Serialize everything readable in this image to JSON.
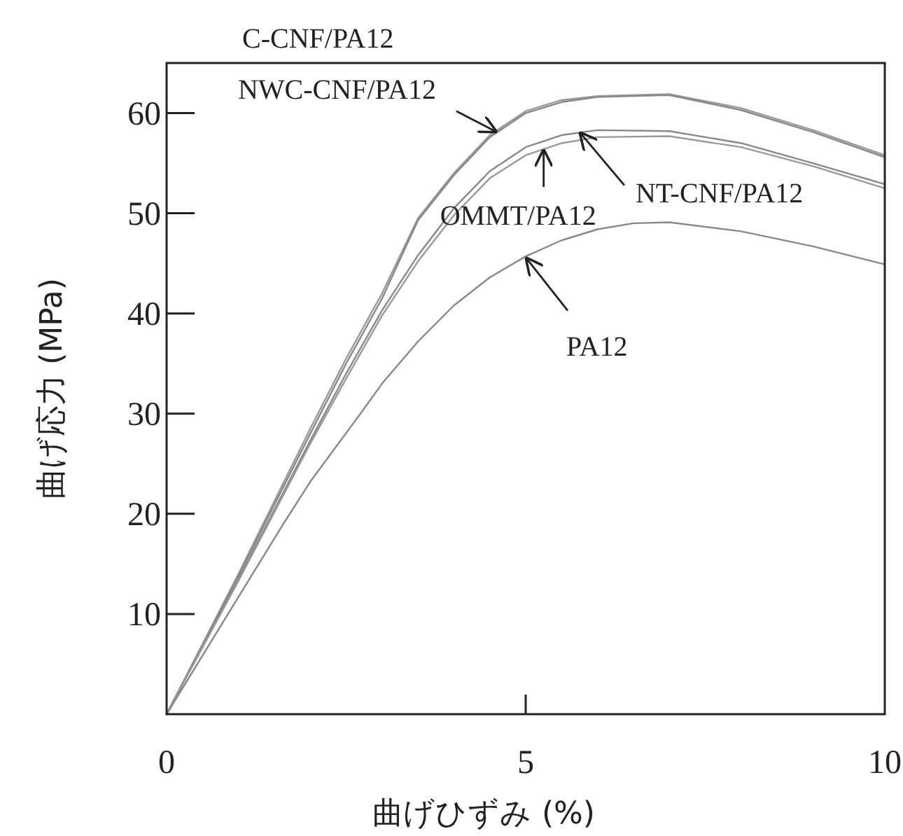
{
  "chart_data": {
    "type": "line",
    "xlabel": "曲げひずみ (%)",
    "ylabel": "曲げ応力 (MPa)",
    "xlim": [
      0,
      10
    ],
    "ylim": [
      0,
      65
    ],
    "xticks": [
      0,
      5,
      10
    ],
    "yticks": [
      10,
      20,
      30,
      40,
      50,
      60
    ],
    "series": [
      {
        "color": "#999999",
        "x": [
          0,
          1,
          2,
          2.5,
          3,
          3.5,
          4,
          4.5,
          5,
          5.5,
          6,
          7,
          8,
          9,
          10
        ],
        "values": [
          0,
          14,
          28.5,
          35.5,
          42,
          49.5,
          54,
          57.8,
          60.2,
          61.3,
          61.7,
          61.9,
          60.5,
          58.3,
          55.8
        ]
      },
      {
        "color": "#888888",
        "x": [
          0,
          1,
          2,
          2.5,
          3,
          3.5,
          4,
          4.5,
          5,
          5.5,
          6,
          7,
          8,
          9,
          10
        ],
        "values": [
          0,
          13.8,
          28,
          35,
          41.5,
          49.3,
          53.8,
          57.6,
          60,
          61.1,
          61.6,
          61.8,
          60.3,
          58.1,
          55.6
        ]
      },
      {
        "color": "#888888",
        "x": [
          0,
          1,
          2,
          2.5,
          3,
          3.5,
          4,
          4.5,
          5,
          5.5,
          6,
          7,
          8,
          9,
          10
        ],
        "values": [
          0,
          13.5,
          27.3,
          34,
          40.3,
          45.8,
          50.5,
          54.2,
          56.6,
          57.8,
          58.3,
          58.2,
          57,
          55,
          52.9
        ]
      },
      {
        "color": "#999999",
        "x": [
          0,
          1,
          2,
          2.5,
          3,
          3.5,
          4,
          4.5,
          5,
          5.5,
          6,
          7,
          8,
          9,
          10
        ],
        "values": [
          0,
          13.3,
          27,
          33.5,
          39.8,
          45.2,
          49.8,
          53.5,
          55.8,
          57,
          57.6,
          57.7,
          56.6,
          54.7,
          52.5
        ]
      },
      {
        "color": "#888888",
        "x": [
          0,
          1,
          1.6,
          2,
          2.7,
          3,
          3.5,
          4,
          4.5,
          5,
          5.5,
          6,
          6.5,
          7,
          8,
          9,
          10
        ],
        "values": [
          0,
          11.7,
          18.7,
          23.2,
          30,
          33,
          37.2,
          40.8,
          43.6,
          45.7,
          47.3,
          48.4,
          49,
          49.1,
          48.2,
          46.7,
          44.9
        ]
      }
    ],
    "annotations": [
      "C-CNF/PA12",
      {
        "text": "NWC-CNF/PA12",
        "x": 4.6,
        "y": 58.1
      },
      {
        "text": "OMMT/PA12",
        "x": 5.25,
        "y": 56.4
      },
      {
        "text": "NT-CNF/PA12",
        "x": 5.75,
        "y": 58.1
      },
      {
        "text": "PA12",
        "x": 5,
        "y": 45.6
      }
    ]
  }
}
